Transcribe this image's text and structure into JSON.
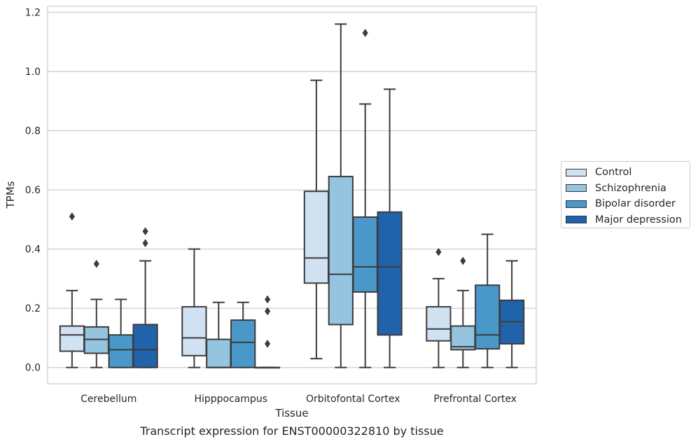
{
  "chart_data": {
    "type": "box",
    "xlabel": "Tissue",
    "ylabel": "TPMs",
    "caption": "Transcript expression for ENST00000322810 by tissue",
    "ylim": [
      -0.055,
      1.22
    ],
    "yticks": [
      "0.0",
      "0.2",
      "0.4",
      "0.6",
      "0.8",
      "1.0",
      "1.2"
    ],
    "ytick_values": [
      0,
      0.2,
      0.4,
      0.6,
      0.8,
      1.0,
      1.2
    ],
    "grid": "horizontal",
    "legend_position": "right",
    "categories": [
      "Cerebellum",
      "Hipppocampus",
      "Orbitofontal Cortex",
      "Prefrontal Cortex"
    ],
    "series": [
      {
        "name": "Control",
        "color": "#d0e1f2",
        "boxes": [
          {
            "whisker_low": 0.0,
            "q1": 0.055,
            "median": 0.11,
            "q3": 0.14,
            "whisker_high": 0.26,
            "outliers": [
              0.51
            ]
          },
          {
            "whisker_low": 0.0,
            "q1": 0.04,
            "median": 0.1,
            "q3": 0.205,
            "whisker_high": 0.4,
            "outliers": []
          },
          {
            "whisker_low": 0.03,
            "q1": 0.285,
            "median": 0.37,
            "q3": 0.595,
            "whisker_high": 0.97,
            "outliers": []
          },
          {
            "whisker_low": 0.0,
            "q1": 0.09,
            "median": 0.13,
            "q3": 0.205,
            "whisker_high": 0.3,
            "outliers": [
              0.39
            ]
          }
        ]
      },
      {
        "name": "Schizophrenia",
        "color": "#94c4df",
        "boxes": [
          {
            "whisker_low": 0.0,
            "q1": 0.048,
            "median": 0.095,
            "q3": 0.137,
            "whisker_high": 0.23,
            "outliers": [
              0.35
            ]
          },
          {
            "whisker_low": 0.0,
            "q1": 0.0,
            "median": 0.0,
            "q3": 0.095,
            "whisker_high": 0.22,
            "outliers": []
          },
          {
            "whisker_low": 0.0,
            "q1": 0.145,
            "median": 0.315,
            "q3": 0.645,
            "whisker_high": 1.16,
            "outliers": []
          },
          {
            "whisker_low": 0.0,
            "q1": 0.06,
            "median": 0.07,
            "q3": 0.14,
            "whisker_high": 0.26,
            "outliers": [
              0.36
            ]
          }
        ]
      },
      {
        "name": "Bipolar disorder",
        "color": "#4a98c9",
        "boxes": [
          {
            "whisker_low": 0.0,
            "q1": 0.0,
            "median": 0.06,
            "q3": 0.11,
            "whisker_high": 0.23,
            "outliers": []
          },
          {
            "whisker_low": 0.0,
            "q1": 0.0,
            "median": 0.085,
            "q3": 0.16,
            "whisker_high": 0.22,
            "outliers": []
          },
          {
            "whisker_low": 0.0,
            "q1": 0.255,
            "median": 0.34,
            "q3": 0.508,
            "whisker_high": 0.89,
            "outliers": [
              1.13
            ]
          },
          {
            "whisker_low": 0.0,
            "q1": 0.063,
            "median": 0.11,
            "q3": 0.278,
            "whisker_high": 0.45,
            "outliers": []
          }
        ]
      },
      {
        "name": "Major depression",
        "color": "#2163aa",
        "boxes": [
          {
            "whisker_low": 0.0,
            "q1": 0.0,
            "median": 0.06,
            "q3": 0.145,
            "whisker_high": 0.36,
            "outliers": [
              0.42,
              0.46
            ]
          },
          {
            "whisker_low": 0.0,
            "q1": 0.0,
            "median": 0.0,
            "q3": 0.0,
            "whisker_high": 0.0,
            "outliers": [
              0.08,
              0.19,
              0.23
            ]
          },
          {
            "whisker_low": 0.0,
            "q1": 0.11,
            "median": 0.34,
            "q3": 0.525,
            "whisker_high": 0.94,
            "outliers": []
          },
          {
            "whisker_low": 0.0,
            "q1": 0.08,
            "median": 0.155,
            "q3": 0.227,
            "whisker_high": 0.36,
            "outliers": []
          }
        ]
      }
    ]
  }
}
